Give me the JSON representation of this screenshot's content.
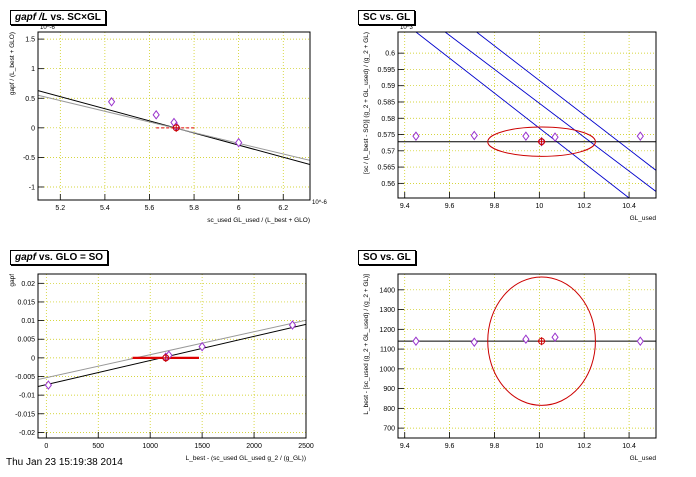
{
  "chart_data": [
    {
      "type": "scatter",
      "title": "gapf /L vs. SC×GL",
      "title_parts": {
        "italic": "gapf /L",
        "rest": " vs. SC×GL"
      },
      "xlabel": "sc_used GL_used / (L_best + GLO)",
      "ylabel": "gapf / (L_best + GLO)",
      "x_exponent": "10^-6",
      "y_exponent": "10^-6",
      "xlim": [
        5.1,
        6.32
      ],
      "ylim": [
        -1.22,
        1.62
      ],
      "xticks": [
        5.2,
        5.4,
        5.6,
        5.8,
        6,
        6.2
      ],
      "yticks": [
        -1,
        -0.5,
        0,
        0.5,
        1,
        1.5
      ],
      "xtick_labels": [
        "5.2",
        "5.4",
        "5.6",
        "5.8",
        "6",
        "6.2"
      ],
      "ytick_labels": [
        "-1",
        "-0.5",
        "0",
        "0.5",
        "1",
        "1.5"
      ],
      "grid": true,
      "points": [
        {
          "x": 5.43,
          "y": 0.44
        },
        {
          "x": 5.63,
          "y": 0.22
        },
        {
          "x": 5.71,
          "y": 0.09
        },
        {
          "x": 5.72,
          "y": 0.02
        },
        {
          "x": 6.0,
          "y": -0.25
        }
      ],
      "fit_lines": [
        {
          "color": "#000000",
          "x1": 5.1,
          "y1": 0.63,
          "x2": 6.32,
          "y2": -0.62
        },
        {
          "color": "#999999",
          "x1": 5.1,
          "y1": 0.55,
          "x2": 6.32,
          "y2": -0.55
        }
      ],
      "best_point": {
        "x": 5.72,
        "y": 0.0,
        "xerr": 0.09
      },
      "best_style": "dashed"
    },
    {
      "type": "scatter",
      "title": "SC vs. GL",
      "xlabel": "GL_used",
      "ylabel": "[sc / (L_best - SO)] (g_2 + GL_used) / (g_2 + GL)",
      "y_exponent": "10^3",
      "xlim": [
        9.37,
        10.52
      ],
      "ylim": [
        0.5555,
        0.6065
      ],
      "xticks": [
        9.4,
        9.6,
        9.8,
        10,
        10.2,
        10.4
      ],
      "yticks": [
        0.56,
        0.565,
        0.57,
        0.575,
        0.58,
        0.585,
        0.59,
        0.595,
        0.6
      ],
      "xtick_labels": [
        "9.4",
        "9.6",
        "9.8",
        "10",
        "10.2",
        "10.4"
      ],
      "ytick_labels": [
        "0.56",
        "0.565",
        "0.57",
        "0.575",
        "0.58",
        "0.585",
        "0.59",
        "0.595",
        "0.6"
      ],
      "grid": true,
      "points": [
        {
          "x": 9.45,
          "y": 0.5745
        },
        {
          "x": 9.71,
          "y": 0.5747
        },
        {
          "x": 9.94,
          "y": 0.5745
        },
        {
          "x": 10.01,
          "y": 0.5728
        },
        {
          "x": 10.07,
          "y": 0.5742
        },
        {
          "x": 10.45,
          "y": 0.5745
        }
      ],
      "hline": {
        "y": 0.5728,
        "color": "#000000"
      },
      "diag_lines": [
        {
          "color": "#0000cc",
          "x1": 9.45,
          "y1": 0.6065,
          "x2": 10.4,
          "y2": 0.5555
        },
        {
          "color": "#0000cc",
          "x1": 9.58,
          "y1": 0.6065,
          "x2": 10.52,
          "y2": 0.5575
        },
        {
          "color": "#0000cc",
          "x1": 9.72,
          "y1": 0.6065,
          "x2": 10.52,
          "y2": 0.564
        }
      ],
      "ellipse": {
        "cx": 10.01,
        "cy": 0.5728,
        "rx": 0.24,
        "ry": 0.0045,
        "color": "#cc0000"
      },
      "best_point": {
        "x": 10.01,
        "y": 0.5728
      }
    },
    {
      "type": "scatter",
      "title": "gapf vs. GLO = SO",
      "title_parts": {
        "italic": "gapf",
        "rest": " vs. GLO = SO"
      },
      "xlabel": "L_best - (sc_used GL_used g_2 / (g_GL))",
      "ylabel": "gapf",
      "xlim": [
        -80,
        2500
      ],
      "ylim": [
        -0.0215,
        0.0225
      ],
      "xticks": [
        0,
        500,
        1000,
        1500,
        2000,
        2500
      ],
      "yticks": [
        -0.02,
        -0.015,
        -0.01,
        -0.005,
        0,
        0.005,
        0.01,
        0.015,
        0.02
      ],
      "xtick_labels": [
        "0",
        "500",
        "1000",
        "1500",
        "2000",
        "2500"
      ],
      "ytick_labels": [
        "-0.02",
        "-0.015",
        "-0.01",
        "-0.005",
        "0",
        "0.005",
        "0.01",
        "0.015",
        "0.02"
      ],
      "grid": true,
      "points": [
        {
          "x": 20,
          "y": -0.0073
        },
        {
          "x": 1150,
          "y": 0.0002
        },
        {
          "x": 1180,
          "y": 0.0007
        },
        {
          "x": 1500,
          "y": 0.003
        },
        {
          "x": 2370,
          "y": 0.0088
        }
      ],
      "fit_lines": [
        {
          "color": "#000000",
          "x1": -80,
          "y1": -0.0077,
          "x2": 2500,
          "y2": 0.009
        },
        {
          "color": "#999999",
          "x1": -80,
          "y1": -0.0058,
          "x2": 2500,
          "y2": 0.0101
        }
      ],
      "best_point": {
        "x": 1150,
        "y": 0.0,
        "xerr": 320
      },
      "best_style": "solid"
    },
    {
      "type": "scatter",
      "title": "SO vs. GL",
      "xlabel": "GL_used",
      "ylabel": "L_best - [sc_used (g_2 + GL_used) / (g_2 + GL)]",
      "xlim": [
        9.37,
        10.52
      ],
      "ylim": [
        650,
        1480
      ],
      "xticks": [
        9.4,
        9.6,
        9.8,
        10,
        10.2,
        10.4
      ],
      "yticks": [
        700,
        800,
        900,
        1000,
        1100,
        1200,
        1300,
        1400
      ],
      "xtick_labels": [
        "9.4",
        "9.6",
        "9.8",
        "10",
        "10.2",
        "10.4"
      ],
      "ytick_labels": [
        "700",
        "800",
        "900",
        "1000",
        "1100",
        "1200",
        "1300",
        "1400"
      ],
      "grid": true,
      "points": [
        {
          "x": 9.45,
          "y": 1140
        },
        {
          "x": 9.71,
          "y": 1135
        },
        {
          "x": 9.94,
          "y": 1150
        },
        {
          "x": 10.07,
          "y": 1160
        },
        {
          "x": 10.45,
          "y": 1140
        }
      ],
      "hline": {
        "y": 1140,
        "color": "#000000"
      },
      "ellipse": {
        "cx": 10.01,
        "cy": 1140,
        "rx": 0.24,
        "ry": 325,
        "color": "#cc0000"
      },
      "best_point": {
        "x": 10.01,
        "y": 1140
      }
    }
  ],
  "footer": {
    "timestamp": "Thu Jan 23 15:19:38 2014"
  }
}
